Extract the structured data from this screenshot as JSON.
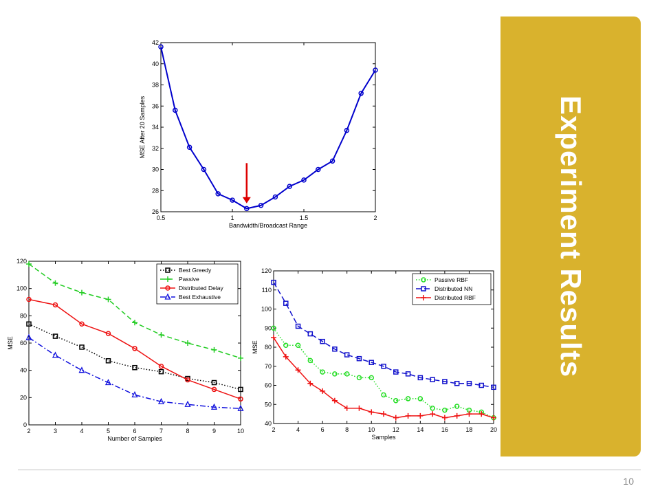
{
  "slide": {
    "title": "Experiment Results",
    "page_number": "10",
    "panel_color": "#d9b22d"
  },
  "chart_data": [
    {
      "id": "top",
      "type": "line",
      "xlabel": "Bandwidth/Broadcast Range",
      "ylabel": "MSE After 20 Samples",
      "xlim": [
        0.5,
        2
      ],
      "ylim": [
        26,
        42
      ],
      "xticks": [
        0.5,
        1,
        1.5,
        2
      ],
      "xtick_labels": [
        "0.5",
        "1",
        "1.5",
        "2"
      ],
      "yticks": [
        26,
        28,
        30,
        32,
        34,
        36,
        38,
        40,
        42
      ],
      "ytick_labels": [
        "26",
        "28",
        "30",
        "32",
        "34",
        "36",
        "38",
        "40",
        "42"
      ],
      "grid": false,
      "annotation": {
        "type": "arrow",
        "color": "#dd0000",
        "x": 1.1,
        "y_from": 30.6,
        "y_to": 26.8
      },
      "series": [
        {
          "color": "#0000cc",
          "dash": "",
          "marker": "circle",
          "x": [
            0.5,
            0.6,
            0.7,
            0.8,
            0.9,
            1.0,
            1.1,
            1.2,
            1.3,
            1.4,
            1.5,
            1.6,
            1.7,
            1.8,
            1.9,
            2.0
          ],
          "y": [
            41.6,
            35.6,
            32.1,
            30.0,
            27.7,
            27.1,
            26.3,
            26.6,
            27.4,
            28.4,
            29.0,
            30.0,
            30.8,
            33.7,
            37.2,
            39.4
          ]
        }
      ]
    },
    {
      "id": "left",
      "type": "line",
      "xlabel": "Number of Samples",
      "ylabel": "MSE",
      "xlim": [
        2,
        10
      ],
      "ylim": [
        0,
        120
      ],
      "xticks": [
        2,
        3,
        4,
        5,
        6,
        7,
        8,
        9,
        10
      ],
      "xtick_labels": [
        "2",
        "3",
        "4",
        "5",
        "6",
        "7",
        "8",
        "9",
        "10"
      ],
      "yticks": [
        0,
        20,
        40,
        60,
        80,
        100,
        120
      ],
      "ytick_labels": [
        "0",
        "20",
        "40",
        "60",
        "80",
        "100",
        "120"
      ],
      "grid": false,
      "legend": "top-right",
      "series": [
        {
          "name": "Best Greedy",
          "color": "#000000",
          "dash": "1.5,2.5",
          "marker": "square",
          "x": [
            2,
            3,
            4,
            5,
            6,
            7,
            8,
            9,
            10
          ],
          "y": [
            74,
            65,
            57,
            47,
            42,
            39,
            34,
            31,
            26
          ]
        },
        {
          "name": "Passive",
          "color": "#22cc22",
          "dash": "7,4",
          "marker": "plus",
          "x": [
            2,
            3,
            4,
            5,
            6,
            7,
            8,
            9,
            10
          ],
          "y": [
            118,
            104,
            97,
            92,
            75,
            66,
            60,
            55,
            49
          ]
        },
        {
          "name": "Distributed Delay",
          "color": "#ee1111",
          "dash": "",
          "marker": "circle",
          "x": [
            2,
            3,
            4,
            5,
            6,
            7,
            8,
            9,
            10
          ],
          "y": [
            92,
            88,
            74,
            67,
            56,
            43,
            33,
            26,
            19
          ]
        },
        {
          "name": "Best Exhaustive",
          "color": "#1111dd",
          "dash": "8,3,2,3",
          "marker": "triangle",
          "x": [
            2,
            3,
            4,
            5,
            6,
            7,
            8,
            9,
            10
          ],
          "y": [
            64,
            51,
            40,
            31,
            22,
            17,
            15,
            13,
            12
          ]
        }
      ]
    },
    {
      "id": "right",
      "type": "line",
      "xlabel": "Samples",
      "ylabel": "MSE",
      "xlim": [
        2,
        20
      ],
      "ylim": [
        40,
        120
      ],
      "xticks": [
        2,
        4,
        6,
        8,
        10,
        12,
        14,
        16,
        18,
        20
      ],
      "xtick_labels": [
        "2",
        "4",
        "6",
        "8",
        "10",
        "12",
        "14",
        "16",
        "18",
        "20"
      ],
      "yticks": [
        40,
        50,
        60,
        70,
        80,
        90,
        100,
        110,
        120
      ],
      "ytick_labels": [
        "40",
        "50",
        "60",
        "70",
        "80",
        "90",
        "100",
        "110",
        "120"
      ],
      "grid": false,
      "legend": "top-right",
      "series": [
        {
          "name": "Passive RBF",
          "color": "#22dd22",
          "dash": "1.5,2.5",
          "marker": "circle",
          "x": [
            2,
            3,
            4,
            5,
            6,
            7,
            8,
            9,
            10,
            11,
            12,
            13,
            14,
            15,
            16,
            17,
            18,
            19,
            20
          ],
          "y": [
            90,
            81,
            81,
            73,
            67,
            66,
            66,
            64,
            64,
            55,
            52,
            53,
            53,
            48,
            47,
            49,
            47,
            46,
            43
          ]
        },
        {
          "name": "Distributed NN",
          "color": "#1111cc",
          "dash": "8,4",
          "marker": "square",
          "x": [
            2,
            3,
            4,
            5,
            6,
            7,
            8,
            9,
            10,
            11,
            12,
            13,
            14,
            15,
            16,
            17,
            18,
            19,
            20
          ],
          "y": [
            114,
            103,
            91,
            87,
            83,
            79,
            76,
            74,
            72,
            70,
            67,
            66,
            64,
            63,
            62,
            61,
            61,
            60,
            59
          ]
        },
        {
          "name": "Distributed RBF",
          "color": "#ee1111",
          "dash": "",
          "marker": "plus",
          "x": [
            2,
            3,
            4,
            5,
            6,
            7,
            8,
            9,
            10,
            11,
            12,
            13,
            14,
            15,
            16,
            17,
            18,
            19,
            20
          ],
          "y": [
            85,
            75,
            68,
            61,
            57,
            52,
            48,
            48,
            46,
            45,
            43,
            44,
            44,
            45,
            43,
            44,
            45,
            45,
            43
          ]
        }
      ]
    }
  ]
}
